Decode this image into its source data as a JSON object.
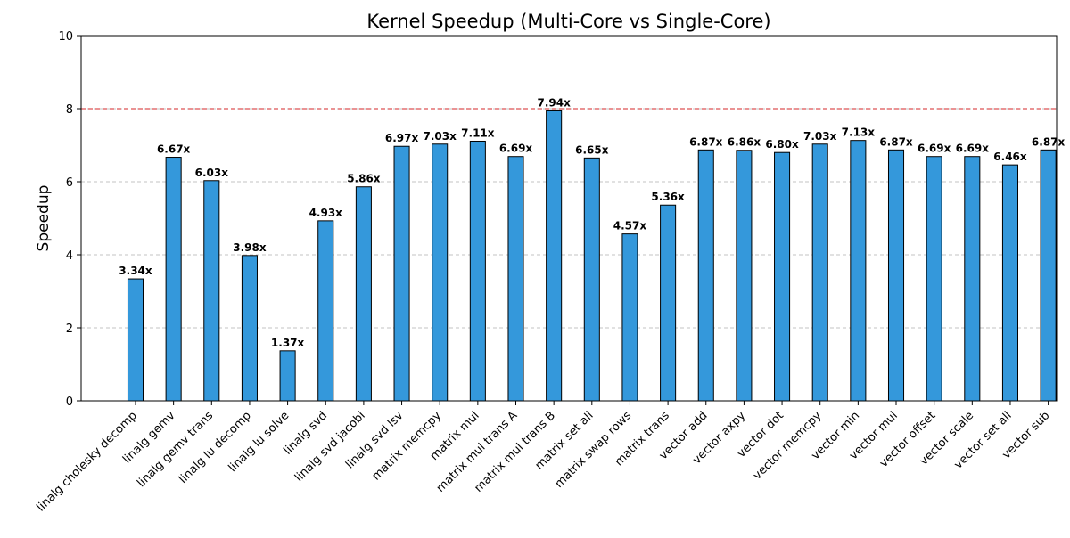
{
  "chart_data": {
    "type": "bar",
    "title": "Kernel Speedup (Multi-Core vs Single-Core)",
    "xlabel": "",
    "ylabel": "Speedup",
    "ylim": [
      0,
      10
    ],
    "yticks": [
      0,
      2,
      4,
      6,
      8,
      10
    ],
    "grid": "horizontal-dashed",
    "reference_line": {
      "y": 8,
      "color": "#d62728",
      "style": "dashed"
    },
    "bar_color": "#3498db",
    "bar_edge_color": "#000000",
    "value_label_suffix": "x",
    "categories": [
      "linalg cholesky decomp",
      "linalg gemv",
      "linalg gemv trans",
      "linalg lu decomp",
      "linalg lu solve",
      "linalg svd",
      "linalg svd jacobi",
      "linalg svd lsv",
      "matrix memcpy",
      "matrix mul",
      "matrix mul trans A",
      "matrix mul trans B",
      "matrix set all",
      "matrix swap rows",
      "matrix trans",
      "vector add",
      "vector axpy",
      "vector dot",
      "vector memcpy",
      "vector min",
      "vector mul",
      "vector offset",
      "vector scale",
      "vector set all",
      "vector sub"
    ],
    "values": [
      3.34,
      6.67,
      6.03,
      3.98,
      1.37,
      4.93,
      5.86,
      6.97,
      7.03,
      7.11,
      6.69,
      7.94,
      6.65,
      4.57,
      5.36,
      6.87,
      6.86,
      6.8,
      7.03,
      7.13,
      6.87,
      6.69,
      6.69,
      6.46,
      6.87
    ],
    "value_labels": [
      "3.34x",
      "6.67x",
      "6.03x",
      "3.98x",
      "1.37x",
      "4.93x",
      "5.86x",
      "6.97x",
      "7.03x",
      "7.11x",
      "6.69x",
      "7.94x",
      "6.65x",
      "4.57x",
      "5.36x",
      "6.87x",
      "6.86x",
      "6.80x",
      "7.03x",
      "7.13x",
      "6.87x",
      "6.69x",
      "6.69x",
      "6.46x",
      "6.87x"
    ]
  }
}
